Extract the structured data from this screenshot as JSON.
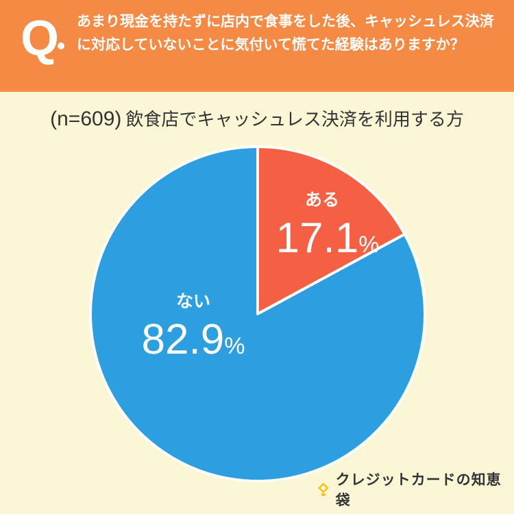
{
  "header": {
    "q_mark": "Q",
    "question": "あまり現金を持たずに店内で食事をした後、キャッシュレス決済に対応していないことに気付いて慌てた経験はありますか？"
  },
  "subtitle": {
    "sample": "(n=609)",
    "text": "飲食店でキャッシュレス決済を利用する方"
  },
  "chart_data": {
    "type": "pie",
    "title": "",
    "categories": [
      "ある",
      "ない"
    ],
    "values": [
      17.1,
      82.9
    ],
    "unit": "%",
    "colors": [
      "#f56045",
      "#2d9fe1"
    ],
    "start_angle": "12 o'clock, clockwise",
    "labels": [
      {
        "label": "ある",
        "value": "17.1",
        "unit": "%"
      },
      {
        "label": "ない",
        "value": "82.9",
        "unit": "%"
      }
    ]
  },
  "logo": {
    "text": "クレジットカードの知恵袋",
    "icon": "lightbulb-icon",
    "icon_color": "#f5c518"
  }
}
